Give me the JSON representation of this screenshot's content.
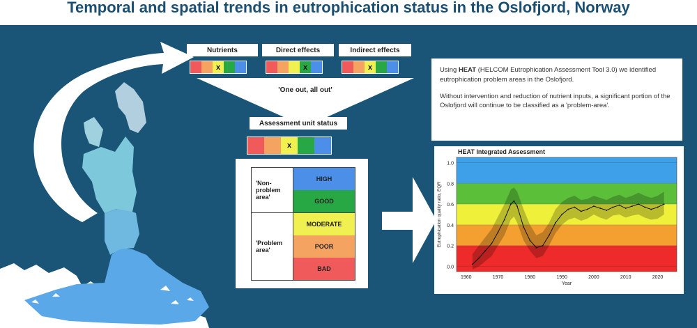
{
  "title": "Temporal and spatial trends in eutrophication status in the Oslofjord, Norway",
  "categories": [
    {
      "label": "Nutrients",
      "marker": "x"
    },
    {
      "label": "Direct effects",
      "marker": "x"
    },
    {
      "label": "Indirect effects",
      "marker": "x"
    }
  ],
  "one_out": "'One out, all out'",
  "assessment_label": "Assessment unit status",
  "assessment_marker": "x",
  "status_classes": {
    "non_problem": "'Non-problem area'",
    "problem": "'Problem area'",
    "high": "HIGH",
    "good": "GOOD",
    "moderate": "MODERATE",
    "poor": "POOR",
    "bad": "BAD"
  },
  "info": {
    "p1_pre": "Using ",
    "p1_bold": "HEAT",
    "p1_post": " (HELCOM Eutrophication Assessment Tool 3.0) we identified eutrophication problem areas in the Oslofjord.",
    "p2": "Without intervention and reduction of nutrient inputs, a significant portion of the Oslofjord will continue to be classified as a 'problem-area'."
  },
  "colors": {
    "red": "#f05a5a",
    "orange": "#f4a460",
    "yellow": "#f0f050",
    "green": "#27a844",
    "blue": "#4c8fe8",
    "panel": "#1a5577",
    "title": "#1b4f72"
  },
  "chart_data": {
    "type": "line",
    "title": "HEAT Integrated Assessment",
    "xlabel": "Year",
    "ylabel": "Eutrophication quality ratio, EQR",
    "xlim": [
      1957,
      2026
    ],
    "ylim": [
      -0.05,
      1.05
    ],
    "xticks": [
      1960,
      1970,
      1980,
      1990,
      2000,
      2010,
      2020
    ],
    "yticks": [
      0.0,
      0.2,
      0.4,
      0.6,
      0.8,
      1.0
    ],
    "bands": [
      {
        "from": 0.8,
        "to": 1.05,
        "color": "#3da0e8"
      },
      {
        "from": 0.6,
        "to": 0.8,
        "color": "#5cbf3a"
      },
      {
        "from": 0.4,
        "to": 0.6,
        "color": "#eef03a"
      },
      {
        "from": 0.2,
        "to": 0.4,
        "color": "#f4a030"
      },
      {
        "from": -0.05,
        "to": 0.2,
        "color": "#ee2a2a"
      }
    ],
    "series": [
      {
        "x": [
          1962,
          1964,
          1966,
          1968,
          1970,
          1972,
          1974,
          1975,
          1976,
          1978,
          1980,
          1982,
          1984,
          1986,
          1988,
          1990,
          1992,
          1994,
          1996,
          1998,
          2000,
          2002,
          2004,
          2006,
          2008,
          2010,
          2012,
          2014,
          2016,
          2018,
          2020,
          2022
        ],
        "y": [
          0.02,
          0.08,
          0.15,
          0.22,
          0.33,
          0.45,
          0.6,
          0.63,
          0.58,
          0.38,
          0.25,
          0.18,
          0.2,
          0.3,
          0.42,
          0.5,
          0.55,
          0.57,
          0.53,
          0.55,
          0.58,
          0.56,
          0.54,
          0.57,
          0.59,
          0.56,
          0.58,
          0.6,
          0.57,
          0.55,
          0.57,
          0.6
        ],
        "lower": [
          -0.03,
          0.0,
          0.05,
          0.1,
          0.2,
          0.3,
          0.45,
          0.48,
          0.42,
          0.25,
          0.15,
          0.08,
          0.1,
          0.2,
          0.32,
          0.4,
          0.45,
          0.47,
          0.44,
          0.46,
          0.5,
          0.47,
          0.45,
          0.49,
          0.5,
          0.47,
          0.49,
          0.5,
          0.47,
          0.45,
          0.46,
          0.5
        ],
        "upper": [
          0.12,
          0.2,
          0.28,
          0.36,
          0.48,
          0.6,
          0.74,
          0.76,
          0.72,
          0.55,
          0.4,
          0.3,
          0.33,
          0.42,
          0.55,
          0.62,
          0.66,
          0.68,
          0.64,
          0.65,
          0.68,
          0.66,
          0.64,
          0.67,
          0.69,
          0.66,
          0.68,
          0.71,
          0.68,
          0.66,
          0.68,
          0.72
        ]
      }
    ]
  }
}
